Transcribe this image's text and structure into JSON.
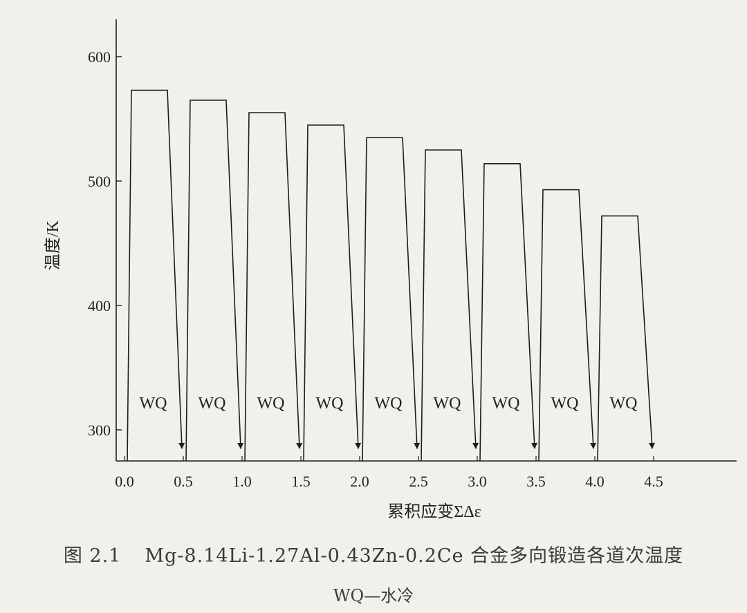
{
  "chart_data": {
    "type": "line",
    "ylabel": "温度/K",
    "xlabel": "累积应变ΣΔε",
    "x_ticks": [
      "0.0",
      "0.5",
      "1.0",
      "1.5",
      "2.0",
      "2.5",
      "3.0",
      "3.5",
      "4.0",
      "4.5"
    ],
    "y_ticks": [
      "300",
      "400",
      "500",
      "600"
    ],
    "xlim": [
      0,
      4.9
    ],
    "ylim": [
      275,
      630
    ],
    "passes": [
      {
        "label": "WQ",
        "start_strain": 0.0,
        "end_strain": 0.5,
        "temperature": 573
      },
      {
        "label": "WQ",
        "start_strain": 0.5,
        "end_strain": 1.0,
        "temperature": 565
      },
      {
        "label": "WQ",
        "start_strain": 1.0,
        "end_strain": 1.5,
        "temperature": 555
      },
      {
        "label": "WQ",
        "start_strain": 1.5,
        "end_strain": 2.0,
        "temperature": 545
      },
      {
        "label": "WQ",
        "start_strain": 2.0,
        "end_strain": 2.5,
        "temperature": 535
      },
      {
        "label": "WQ",
        "start_strain": 2.5,
        "end_strain": 3.0,
        "temperature": 525
      },
      {
        "label": "WQ",
        "start_strain": 3.0,
        "end_strain": 3.5,
        "temperature": 514
      },
      {
        "label": "WQ",
        "start_strain": 3.5,
        "end_strain": 4.0,
        "temperature": 493
      },
      {
        "label": "WQ",
        "start_strain": 4.0,
        "end_strain": 4.5,
        "temperature": 472
      }
    ]
  },
  "caption": {
    "number": "图 2.1",
    "title": "Mg-8.14Li-1.27Al-0.43Zn-0.2Ce 合金多向锻造各道次温度",
    "note": "WQ—水冷"
  }
}
